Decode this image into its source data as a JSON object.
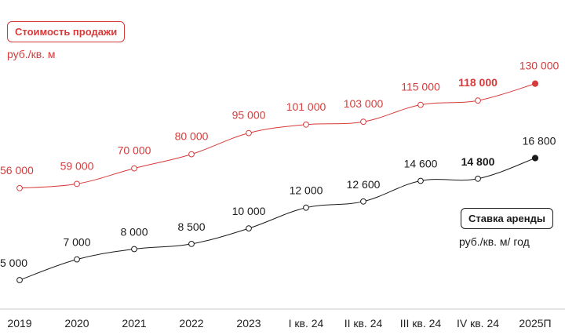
{
  "colors": {
    "sale": "#d63b3b",
    "rent": "#1a1a1a",
    "axis": "#c9c9c9"
  },
  "legend": {
    "sale_label": "Стоимость продажи",
    "sale_unit": "руб./кв. м",
    "rent_label": "Ставка аренды",
    "rent_unit": "руб./кв. м/ год"
  },
  "chart_data": {
    "type": "line",
    "categories": [
      "2019",
      "2020",
      "2021",
      "2022",
      "2023",
      "I кв. 24",
      "II кв. 24",
      "III кв. 24",
      "IV кв. 24",
      "2025П"
    ],
    "series": [
      {
        "name": "Стоимость продажи",
        "unit": "руб./кв. м",
        "values": [
          56000,
          59000,
          70000,
          80000,
          95000,
          101000,
          103000,
          115000,
          118000,
          130000
        ],
        "labels": [
          "56 000",
          "59 000",
          "70 000",
          "80 000",
          "95 000",
          "101 000",
          "103 000",
          "115 000",
          "118 000",
          "130 000"
        ],
        "bold_label_index": 8,
        "forecast_index": 9
      },
      {
        "name": "Ставка аренды",
        "unit": "руб./кв. м/ год",
        "values": [
          5000,
          7000,
          8000,
          8500,
          10000,
          12000,
          12600,
          14600,
          14800,
          16800
        ],
        "labels": [
          "5 000",
          "7 000",
          "8 000",
          "8 500",
          "10 000",
          "12 000",
          "12 600",
          "14 600",
          "14 800",
          "16 800"
        ],
        "bold_label_index": 8,
        "forecast_index": 9
      }
    ],
    "grid": false
  }
}
